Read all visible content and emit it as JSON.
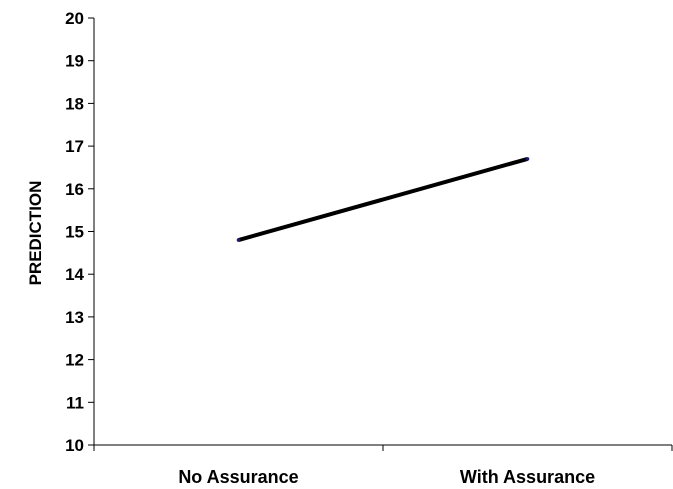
{
  "chart_data": {
    "type": "line",
    "categories": [
      "No Assurance",
      "With Assurance"
    ],
    "series": [
      {
        "values": [
          14.8,
          16.7
        ],
        "color": "#000000"
      }
    ],
    "title": "",
    "xlabel": "",
    "ylabel": "PREDICTION",
    "ylim": [
      10,
      20
    ],
    "yticks": [
      10,
      11,
      12,
      13,
      14,
      15,
      16,
      17,
      18,
      19,
      20
    ],
    "grid": false,
    "legend": "none"
  }
}
